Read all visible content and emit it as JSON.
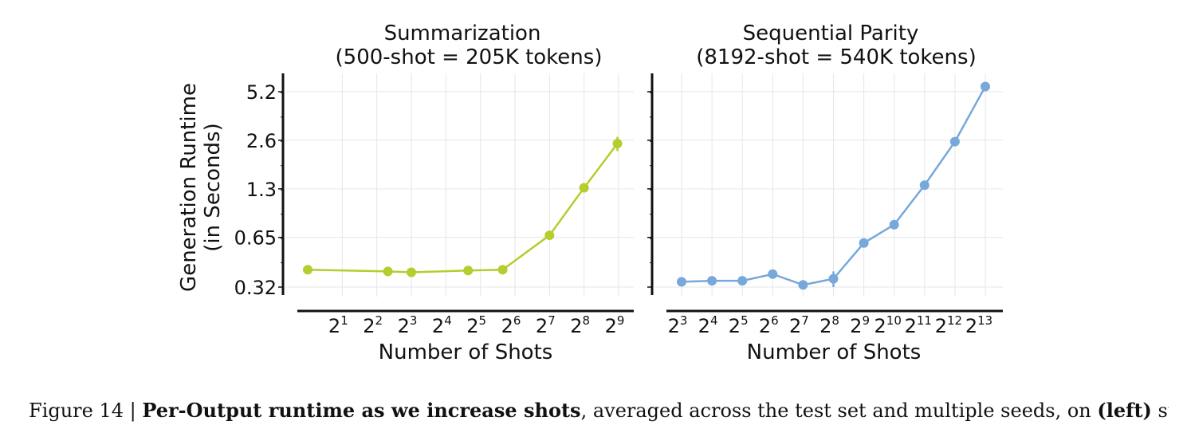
{
  "figure": {
    "ylabel_line1": "Generation Runtime",
    "ylabel_line2": "(in Seconds)",
    "y_tick_labels": [
      "0.32",
      "0.65",
      "1.3",
      "2.6",
      "5.2"
    ]
  },
  "chart_data": [
    {
      "type": "line",
      "title": "Summarization",
      "subtitle": "(500-shot = 205K tokens)",
      "xlabel": "Number of Shots",
      "ylabel": "Generation Runtime (in Seconds)",
      "x_scale": "log2",
      "y_scale": "log",
      "xlim": [
        1,
        512
      ],
      "ylim": [
        0.3,
        6.5
      ],
      "x_ticks": [
        2,
        4,
        8,
        16,
        32,
        64,
        128,
        256,
        512
      ],
      "x_tick_labels": [
        "2^1",
        "2^2",
        "2^3",
        "2^4",
        "2^5",
        "2^6",
        "2^7",
        "2^8",
        "2^9"
      ],
      "y_ticks": [
        0.32,
        0.65,
        1.3,
        2.6,
        5.2
      ],
      "grid": true,
      "color": "#b7cc2e",
      "series": [
        {
          "x": [
            1,
            5,
            8,
            25,
            50,
            128,
            256,
            500
          ],
          "y": [
            0.41,
            0.4,
            0.395,
            0.405,
            0.41,
            0.67,
            1.32,
            2.48
          ],
          "y_err": [
            0,
            0,
            0,
            0,
            0,
            0,
            0,
            0.25
          ]
        }
      ]
    },
    {
      "type": "line",
      "title": "Sequential Parity",
      "subtitle": "(8192-shot = 540K tokens)",
      "xlabel": "Number of Shots",
      "ylabel": "",
      "x_scale": "log2",
      "y_scale": "log",
      "xlim": [
        8,
        8192
      ],
      "ylim": [
        0.3,
        6.5
      ],
      "x_ticks": [
        8,
        16,
        32,
        64,
        128,
        256,
        512,
        1024,
        2048,
        4096,
        8192
      ],
      "x_tick_labels": [
        "2^3",
        "2^4",
        "2^5",
        "2^6",
        "2^7",
        "2^8",
        "2^9",
        "2^10",
        "2^11",
        "2^12",
        "2^13"
      ],
      "y_ticks": [
        0.32,
        0.65,
        1.3,
        2.6,
        5.2
      ],
      "grid": true,
      "color": "#77a8da",
      "series": [
        {
          "x": [
            8,
            16,
            32,
            64,
            128,
            256,
            512,
            1024,
            2048,
            4096,
            8192
          ],
          "y": [
            0.345,
            0.35,
            0.35,
            0.385,
            0.33,
            0.36,
            0.6,
            0.78,
            1.37,
            2.55,
            5.6
          ],
          "y_err": [
            0,
            0,
            0,
            0,
            0,
            0.04,
            0,
            0,
            0,
            0,
            0
          ]
        }
      ]
    }
  ],
  "caption": {
    "prefix": "Figure 14 | ",
    "bold1": "Per-Output runtime as we increase shots",
    "mid": ", averaged across the test set and multiple seeds, on ",
    "bold2": "(left)",
    "suffix": " sum-"
  }
}
